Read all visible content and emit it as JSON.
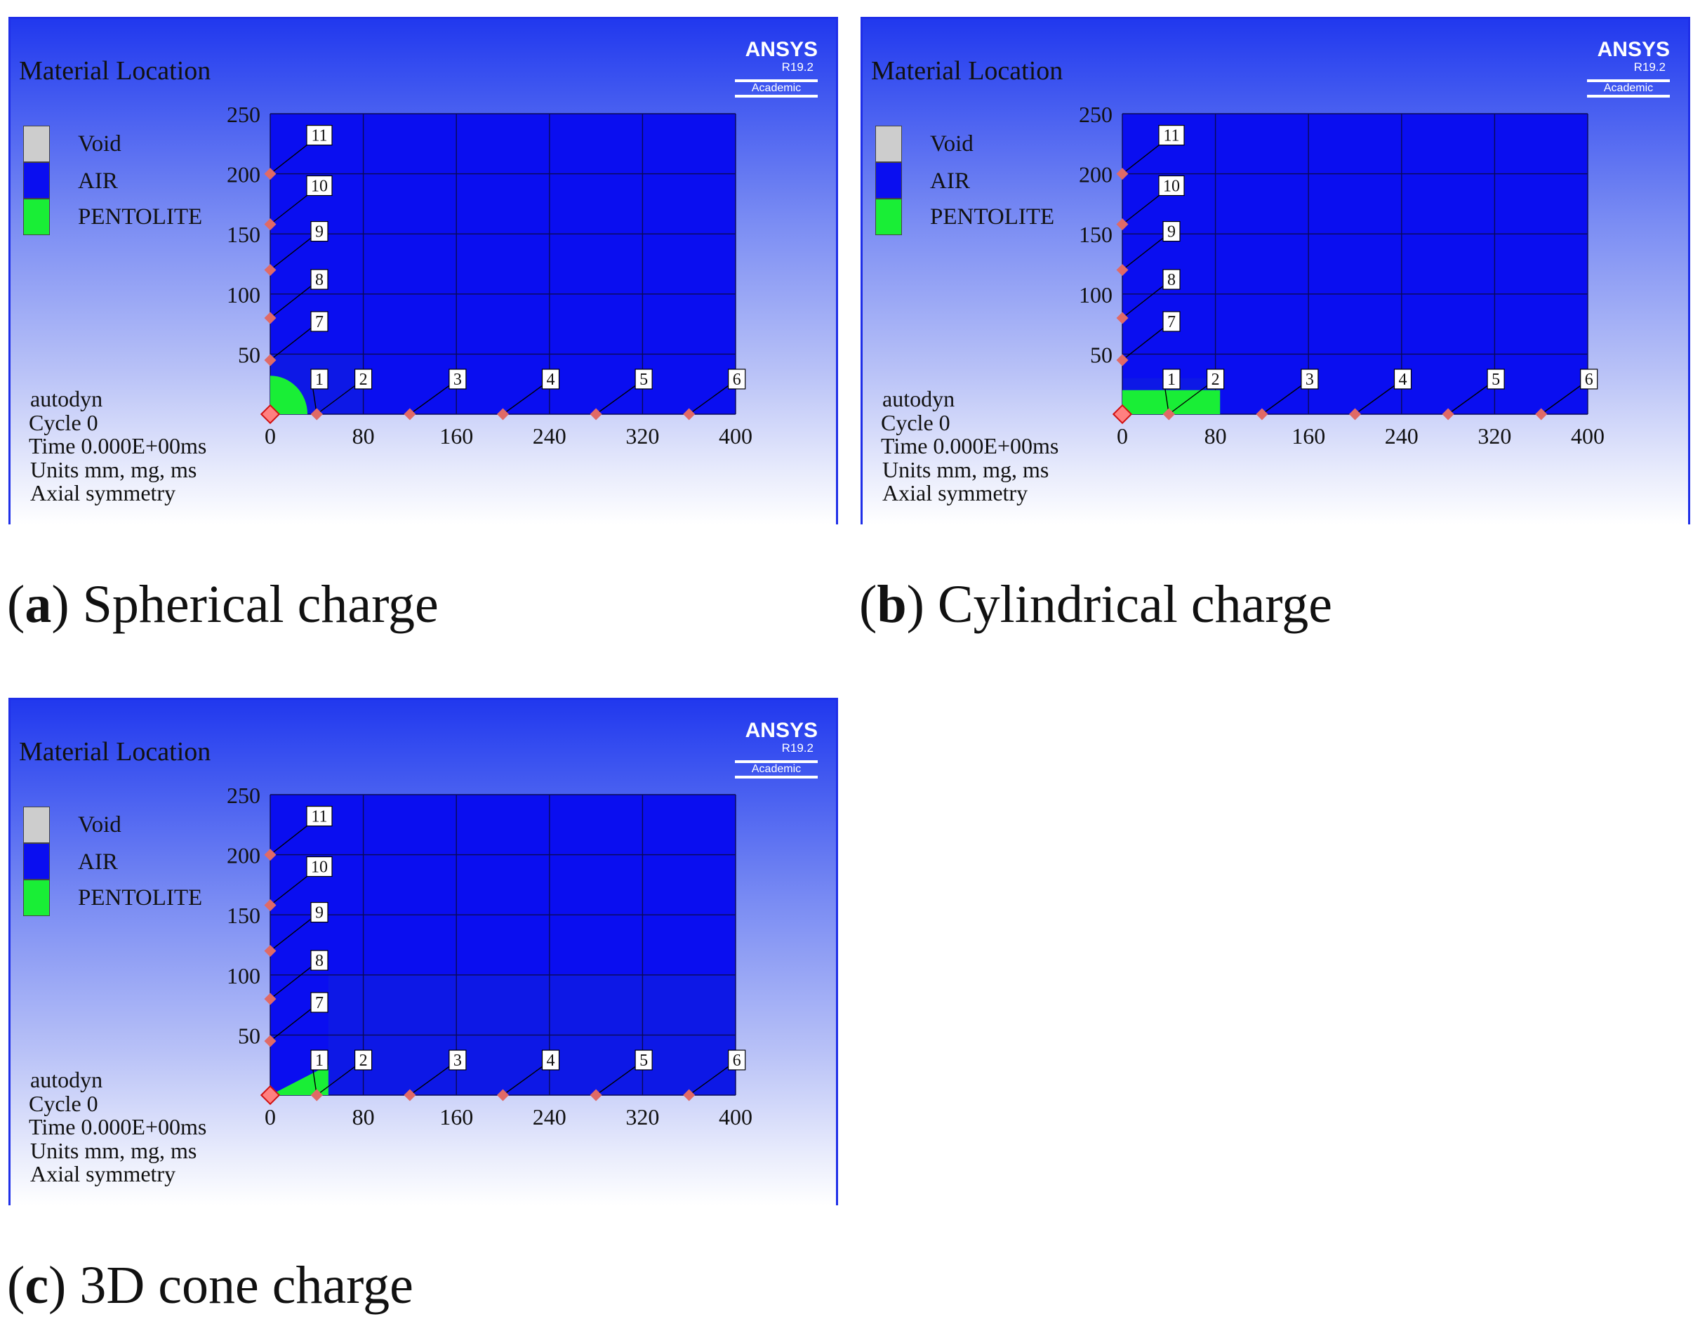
{
  "colors": {
    "void": "#cdcdcd",
    "air": "#0a0ef0",
    "air_inner": "#0d18e6",
    "pentolite": "#19ee36",
    "grid": "#0a0a55",
    "gauge": "#e06a66"
  },
  "common": {
    "title": "Material Location",
    "logo": {
      "name": "ANSYS",
      "version": "R19.2",
      "edition": "Academic"
    },
    "legend": [
      {
        "label": "Void",
        "color": "#cdcdcd"
      },
      {
        "label": "AIR",
        "color": "#0a0ef0"
      },
      {
        "label": "PENTOLITE",
        "color": "#19ee36"
      }
    ],
    "info": [
      "autodyn",
      "Cycle 0",
      "Time 0.000E+00ms",
      "Units mm, mg, ms",
      "Axial symmetry"
    ],
    "x_ticks": [
      0,
      80,
      160,
      240,
      320,
      400
    ],
    "y_ticks": [
      50,
      100,
      150,
      200,
      250
    ],
    "x_range": [
      0,
      400
    ],
    "y_range": [
      0,
      250
    ],
    "gauges": [
      {
        "id": "1",
        "x": 40,
        "y": 0
      },
      {
        "id": "2",
        "x": 40,
        "y": 0
      },
      {
        "id": "3",
        "x": 120,
        "y": 0
      },
      {
        "id": "4",
        "x": 200,
        "y": 0
      },
      {
        "id": "5",
        "x": 280,
        "y": 0
      },
      {
        "id": "6",
        "x": 360,
        "y": 0
      },
      {
        "id": "7",
        "x": 0,
        "y": 45
      },
      {
        "id": "8",
        "x": 0,
        "y": 80
      },
      {
        "id": "9",
        "x": 0,
        "y": 120
      },
      {
        "id": "10",
        "x": 0,
        "y": 158
      },
      {
        "id": "11",
        "x": 0,
        "y": 200
      }
    ]
  },
  "panels": [
    {
      "key": "a",
      "caption_letter": "a",
      "caption_text": "Spherical charge",
      "charge": "sphere",
      "charge_dims": {
        "r": 32
      }
    },
    {
      "key": "b",
      "caption_letter": "b",
      "caption_text": "Cylindrical charge",
      "charge": "cylinder",
      "charge_dims": {
        "w": 84,
        "h": 20
      }
    },
    {
      "key": "c",
      "caption_letter": "c",
      "caption_text": "3D cone charge",
      "charge": "cone",
      "charge_dims": {
        "w": 50,
        "h": 25
      }
    }
  ]
}
